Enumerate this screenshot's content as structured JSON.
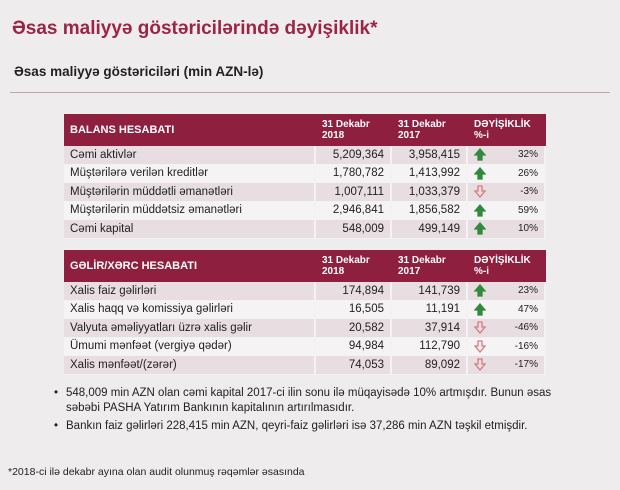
{
  "title": "Əsas maliyyə göstəricilərində dəyişiklik*",
  "subtitle": "Əsas maliyyə göstəriciləri (min AZN-lə)",
  "tables": [
    {
      "header": [
        "BALANS HESABATI",
        "31 Dekabr 2018",
        "31 Dekabr 2017",
        "DƏYİŞİKLİK %-i"
      ],
      "rows": [
        [
          "Cəmi aktivlər",
          "5,209,364",
          "3,958,415",
          "32%"
        ],
        [
          "Müştərilərə verilən kreditlər",
          "1,780,782",
          "1,413,992",
          "26%"
        ],
        [
          "Müştərilərin müddətli əmanətləri",
          "1,007,111",
          "1,033,379",
          "-3%"
        ],
        [
          "Müştərilərin müddətsiz əmanətləri",
          "2,946,841",
          "1,856,582",
          "59%"
        ],
        [
          "Cəmi kapital",
          "548,009",
          "499,149",
          "10%"
        ]
      ]
    },
    {
      "header": [
        "GƏLİR/XƏRC HESABATI",
        "31 Dekabr 2018",
        "31 Dekabr 2017",
        "DƏYİŞİKLİK %-i"
      ],
      "rows": [
        [
          "Xalis faiz gəlirləri",
          "174,894",
          "141,739",
          "23%"
        ],
        [
          "Xalis haqq və komissiya gəlirləri",
          "16,505",
          "11,191",
          "47%"
        ],
        [
          "Valyuta əməliyyatları üzrə xalis gəlir",
          "20,582",
          "37,914",
          "-46%"
        ],
        [
          "Ümumi mənfəət (vergiyə qədər)",
          "94,984",
          "112,790",
          "-16%"
        ],
        [
          "Xalis mənfəət/(zərər)",
          "74,053",
          "89,092",
          "-17%"
        ]
      ]
    }
  ],
  "bullets": [
    "548,009 min AZN olan cəmi kapital 2017-ci ilin sonu ilə müqayisədə 10% artmışdır. Bunun əsas səbəbi PASHA Yatırım Bankının kapitalının artırılmasıdır.",
    "Bankın faiz gəlirləri 228,415 min AZN, qeyri-faiz gəlirləri isə 37,286 min AZN təşkil etmişdir."
  ],
  "footnote": "*2018-ci ilə dekabr ayına olan audit olunmuş rəqəmlər əsasında"
}
